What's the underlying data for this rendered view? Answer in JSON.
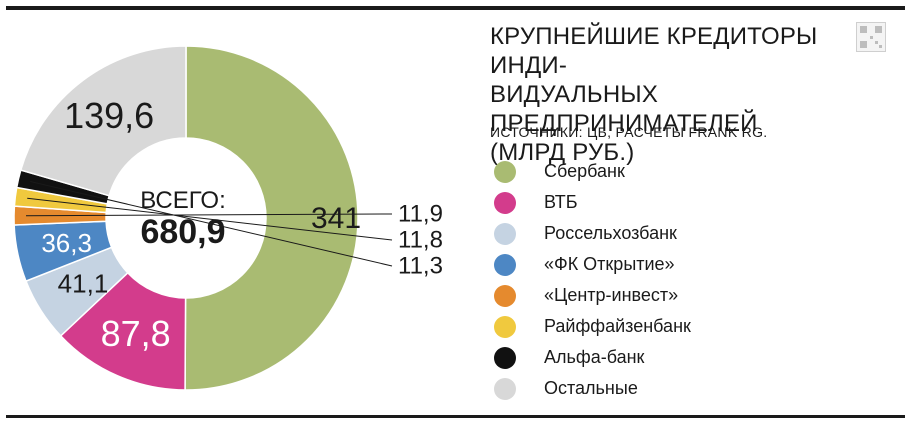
{
  "title_lines": [
    "КРУПНЕЙШИЕ КРЕДИТОРЫ ИНДИ-",
    "ВИДУАЛЬНЫХ ПРЕДПРИНИМАТЕЛЕЙ",
    "(МЛРД РУБ.)"
  ],
  "source": "ИСТОЧНИКИ: ЦБ, РАСЧЕТЫ FRANK RG.",
  "center": {
    "label": "ВСЕГО:",
    "value": "680,9"
  },
  "icons": {
    "corner": "qr-code-icon"
  },
  "chart_data": {
    "type": "pie",
    "donut": true,
    "title": "КРУПНЕЙШИЕ КРЕДИТОРЫ ИНДИВИДУАЛЬНЫХ ПРЕДПРИНИМАТЕЛЕЙ (МЛРД РУБ.)",
    "total": 680.9,
    "legend_position": "right",
    "slices": [
      {
        "name": "Сбербанк",
        "value": 341,
        "label": "341",
        "color": "#a9bb72"
      },
      {
        "name": "ВТБ",
        "value": 87.8,
        "label": "87,8",
        "color": "#d33c8c"
      },
      {
        "name": "Россельхозбанк",
        "value": 41.1,
        "label": "41,1",
        "color": "#c5d3e2"
      },
      {
        "name": "«ФК Открытие»",
        "value": 36.3,
        "label": "36,3",
        "color": "#4d87c4"
      },
      {
        "name": "«Центр-инвест»",
        "value": 11.9,
        "label": "11,9",
        "color": "#e58a2e"
      },
      {
        "name": "Райффайзенбанк",
        "value": 11.8,
        "label": "11,8",
        "color": "#f0c93e"
      },
      {
        "name": "Альфа-банк",
        "value": 11.3,
        "label": "11,3",
        "color": "#111111"
      },
      {
        "name": "Остальные",
        "value": 139.6,
        "label": "139,6",
        "color": "#d8d8d8"
      }
    ]
  }
}
